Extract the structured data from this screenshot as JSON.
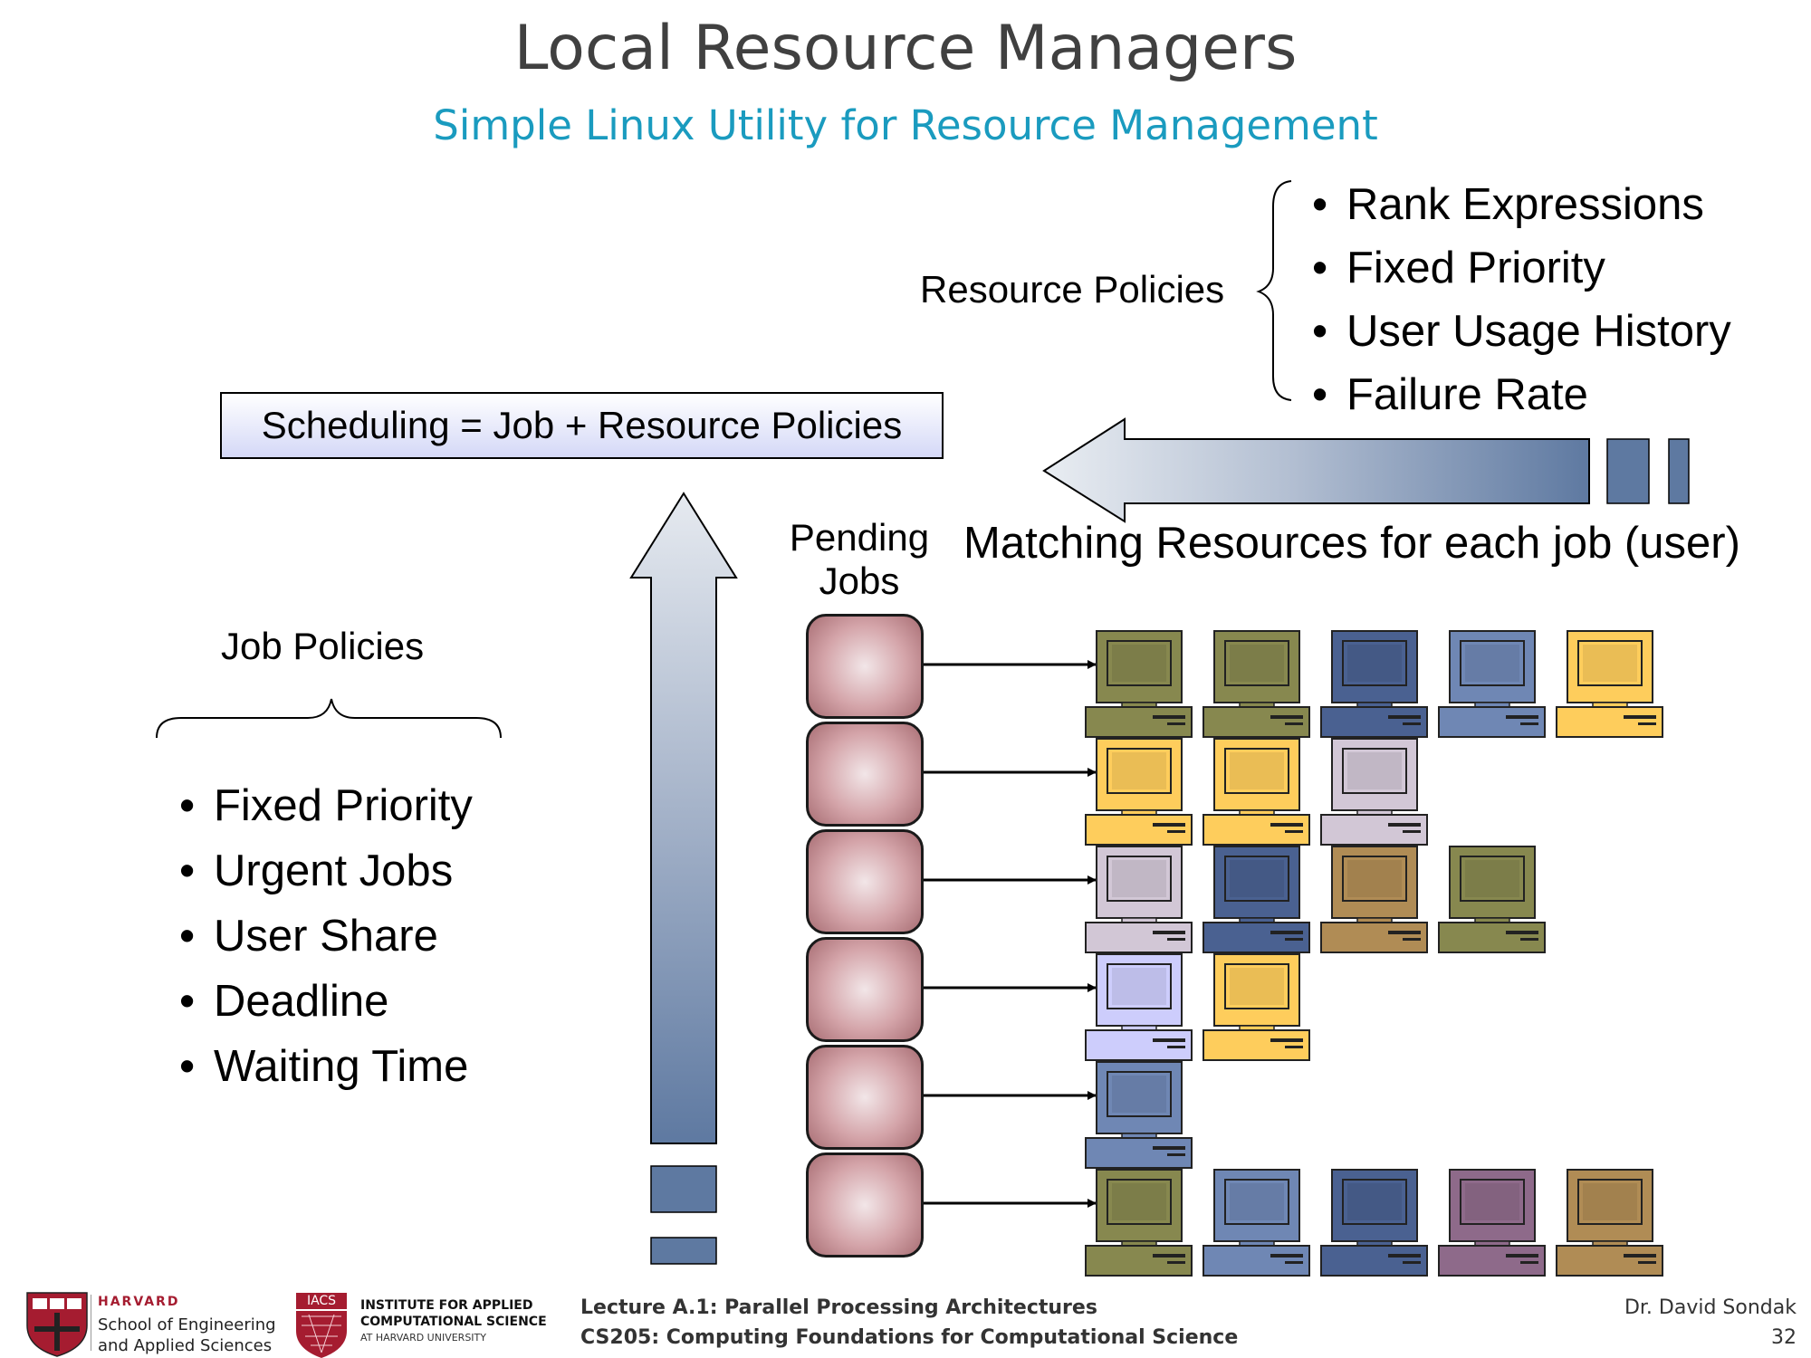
{
  "header": {
    "title": "Local Resource Managers",
    "subtitle": "Simple Linux Utility for Resource Management"
  },
  "resource_policies": {
    "label": "Resource Policies",
    "items": [
      "Rank Expressions",
      "Fixed Priority",
      "User Usage History",
      "Failure Rate"
    ]
  },
  "job_policies": {
    "label": "Job Policies",
    "items": [
      "Fixed Priority",
      "Urgent Jobs",
      "User Share",
      "Deadline",
      "Waiting Time"
    ]
  },
  "scheduling_box": "Scheduling = Job + Resource Policies",
  "matching_label": "Matching Resources for each job (user)",
  "pending_label": {
    "line1": "Pending",
    "line2": "Jobs"
  },
  "colors": {
    "olive": "#87884f",
    "navy": "#4a6191",
    "steel": "#6f87b4",
    "yellow": "#fecd5c",
    "lilac": "#d2c7d6",
    "brown": "#b08c55",
    "lavender": "#cdcdfc",
    "plum": "#8e6a8a",
    "arrow_dark": "#5f7aa1",
    "job_block": "#c48e94"
  },
  "computer_rows": [
    [
      "olive",
      "olive",
      "navy",
      "steel",
      "yellow"
    ],
    [
      "yellow",
      "yellow",
      "lilac"
    ],
    [
      "lilac",
      "navy",
      "brown",
      "olive"
    ],
    [
      "lavender",
      "yellow"
    ],
    [
      "steel"
    ],
    [
      "olive",
      "steel",
      "navy",
      "plum",
      "brown"
    ]
  ],
  "footer": {
    "harvard_line1": "HARVARD",
    "harvard_line2": "School of Engineering",
    "harvard_line3": "and Applied Sciences",
    "iacs_badge": "IACS",
    "iacs_line1": "INSTITUTE FOR APPLIED",
    "iacs_line2": "COMPUTATIONAL SCIENCE",
    "iacs_line3": "AT HARVARD UNIVERSITY",
    "lecture": "Lecture A.1: Parallel Processing Architectures",
    "course": "CS205: Computing Foundations for Computational Science",
    "author": "Dr. David Sondak",
    "page": "32"
  }
}
